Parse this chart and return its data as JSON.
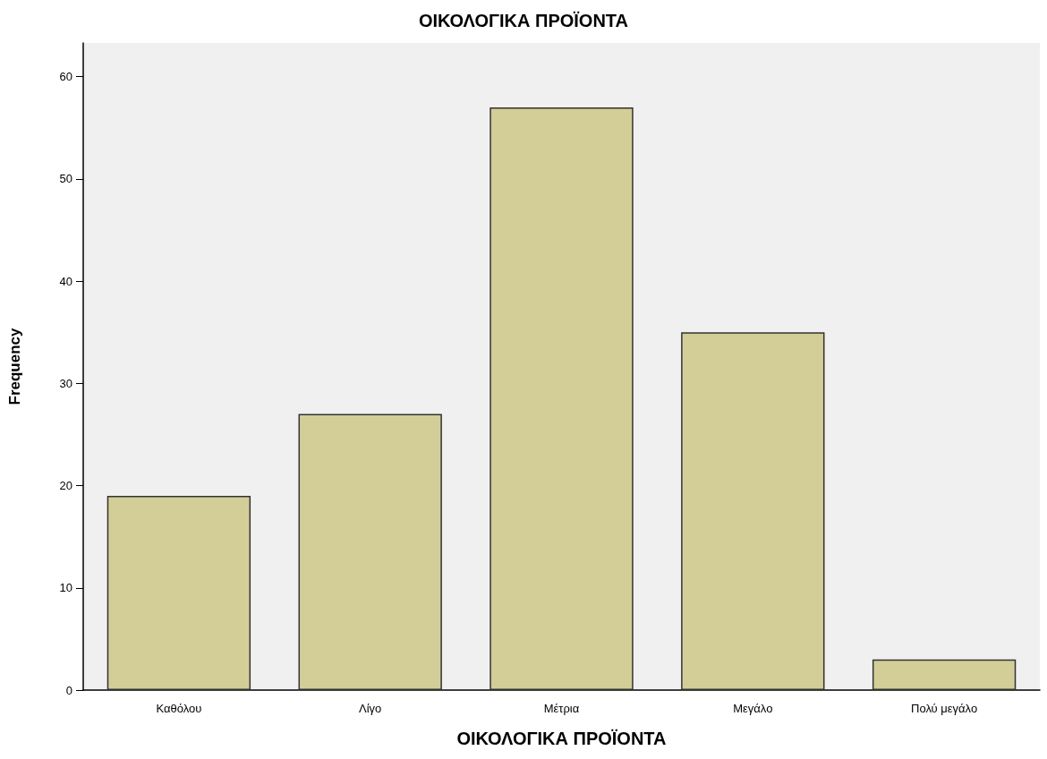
{
  "chart_data": {
    "type": "bar",
    "title": "ΟΙΚΟΛΟΓΙΚΑ ΠΡΟΪΟΝΤΑ",
    "xlabel": "ΟΙΚΟΛΟΓΙΚΑ ΠΡΟΪΟΝΤΑ",
    "ylabel": "Frequency",
    "categories": [
      "Καθόλου",
      "Λίγο",
      "Μέτρια",
      "Μεγάλο",
      "Πολύ μεγάλο"
    ],
    "values": [
      19,
      27,
      57,
      35,
      3
    ],
    "color": "#d3ce97",
    "ylim": [
      0,
      63.3
    ],
    "yticks": [
      0,
      10,
      20,
      30,
      40,
      50,
      60
    ],
    "grid": false
  }
}
